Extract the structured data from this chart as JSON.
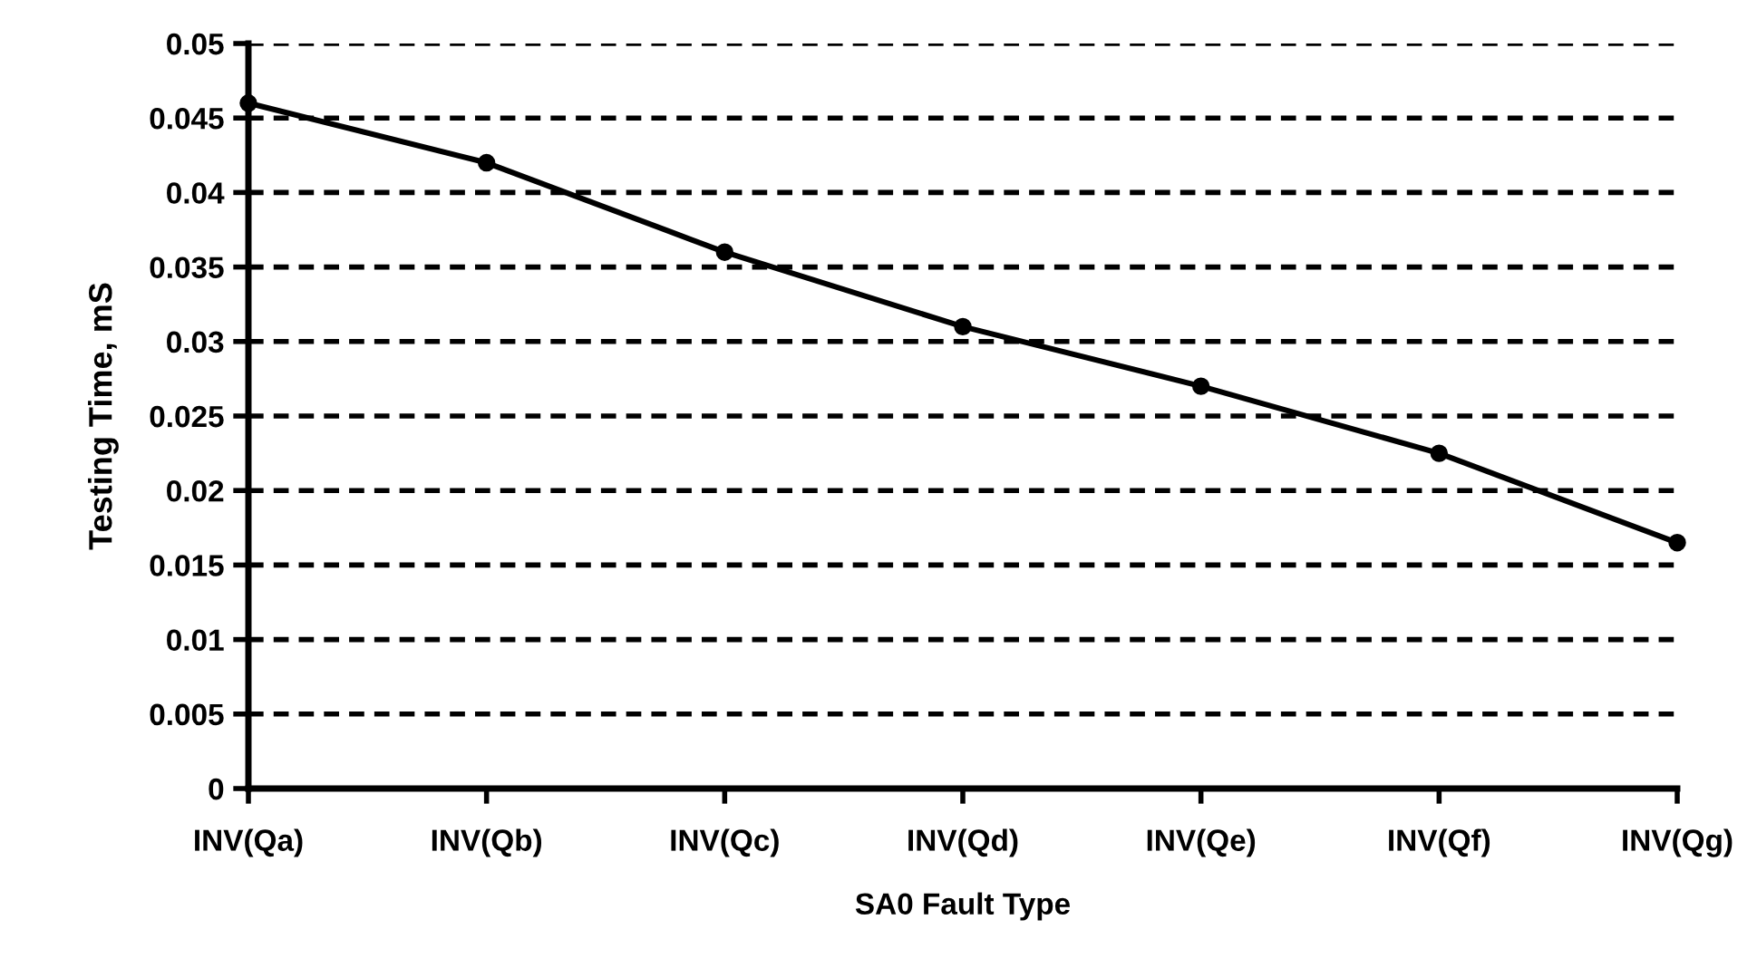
{
  "chart_data": {
    "type": "line",
    "xlabel": "SA0 Fault Type",
    "ylabel": "Testing Time, mS",
    "categories": [
      "INV(Qa)",
      "INV(Qb)",
      "INV(Qc)",
      "INV(Qd)",
      "INV(Qe)",
      "INV(Qf)",
      "INV(Qg)"
    ],
    "series": [
      {
        "color": "#000000",
        "values": [
          0.046,
          0.042,
          0.036,
          0.031,
          0.027,
          0.0225,
          0.0165
        ]
      }
    ],
    "ylim": [
      0,
      0.05
    ],
    "yticks": [
      0,
      0.005,
      0.01,
      0.015,
      0.02,
      0.025,
      0.03,
      0.035,
      0.04,
      0.045,
      0.05
    ],
    "grid": "y",
    "marker": "circle",
    "line_style": "solid"
  }
}
